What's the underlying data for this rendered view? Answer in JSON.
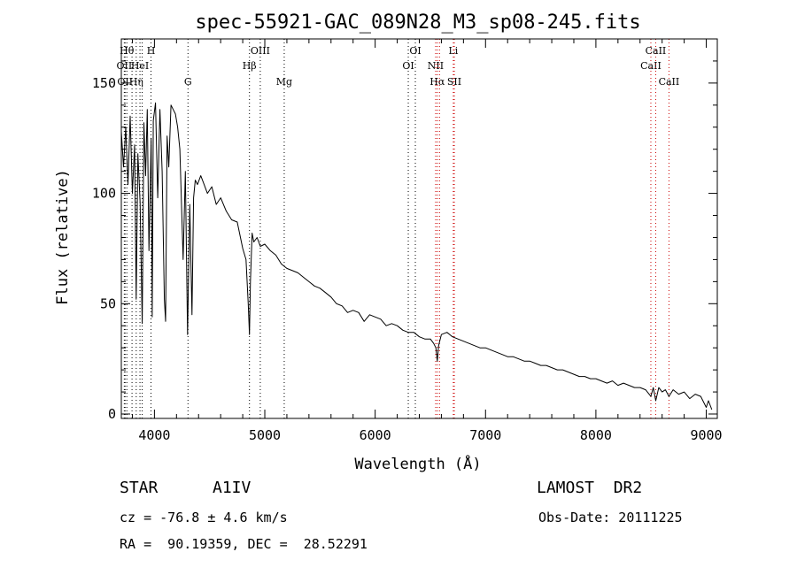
{
  "chart_data": {
    "type": "line",
    "title": "spec-55921-GAC_089N28_M3_sp08-245.fits",
    "xlabel": "Wavelength (Å)",
    "ylabel": "Flux (relative)",
    "xlim": [
      3700,
      9100
    ],
    "ylim": [
      -2,
      170
    ],
    "x_ticks": [
      4000,
      5000,
      6000,
      7000,
      8000,
      9000
    ],
    "y_ticks": [
      0,
      50,
      100,
      150
    ],
    "grid": false,
    "series": [
      {
        "x": [
          3700,
          3720,
          3740,
          3760,
          3780,
          3800,
          3820,
          3835,
          3850,
          3870,
          3889,
          3905,
          3920,
          3935,
          3950,
          3970,
          3980,
          3990,
          4010,
          4030,
          4050,
          4070,
          4090,
          4101,
          4115,
          4130,
          4150,
          4170,
          4190,
          4210,
          4230,
          4260,
          4280,
          4300,
          4320,
          4340,
          4355,
          4370,
          4390,
          4420,
          4450,
          4480,
          4520,
          4560,
          4600,
          4650,
          4700,
          4750,
          4800,
          4830,
          4850,
          4861,
          4870,
          4885,
          4900,
          4930,
          4960,
          5000,
          5050,
          5100,
          5150,
          5200,
          5250,
          5300,
          5350,
          5400,
          5450,
          5500,
          5550,
          5600,
          5650,
          5700,
          5750,
          5800,
          5850,
          5900,
          5950,
          6000,
          6050,
          6100,
          6150,
          6200,
          6250,
          6300,
          6350,
          6400,
          6450,
          6500,
          6530,
          6550,
          6563,
          6575,
          6600,
          6650,
          6700,
          6750,
          6800,
          6850,
          6900,
          6950,
          7000,
          7050,
          7100,
          7150,
          7200,
          7250,
          7300,
          7350,
          7400,
          7450,
          7500,
          7550,
          7600,
          7650,
          7700,
          7750,
          7800,
          7850,
          7900,
          7950,
          8000,
          8050,
          8100,
          8150,
          8200,
          8250,
          8300,
          8350,
          8400,
          8450,
          8498,
          8520,
          8542,
          8570,
          8600,
          8630,
          8662,
          8700,
          8750,
          8800,
          8850,
          8900,
          8950,
          8980,
          9000,
          9020,
          9050
        ],
        "y": [
          128,
          112,
          130,
          104,
          135,
          100,
          122,
          52,
          118,
          96,
          41,
          132,
          108,
          138,
          74,
          125,
          44,
          133,
          141,
          98,
          138,
          110,
          52,
          42,
          126,
          112,
          140,
          138,
          136,
          130,
          120,
          70,
          110,
          36,
          95,
          45,
          98,
          106,
          104,
          108,
          104,
          100,
          103,
          95,
          98,
          92,
          88,
          87,
          75,
          70,
          50,
          36,
          60,
          82,
          78,
          80,
          76,
          77,
          74,
          72,
          68,
          66,
          65,
          64,
          62,
          60,
          58,
          57,
          55,
          53,
          50,
          49,
          46,
          47,
          46,
          42,
          45,
          44,
          43,
          40,
          41,
          40,
          38,
          37,
          37,
          35,
          34,
          34,
          32,
          30,
          24,
          31,
          36,
          37,
          35,
          34,
          33,
          32,
          31,
          30,
          30,
          29,
          28,
          27,
          26,
          26,
          25,
          24,
          24,
          23,
          22,
          22,
          21,
          20,
          20,
          19,
          18,
          17,
          17,
          16,
          16,
          15,
          14,
          15,
          13,
          14,
          13,
          12,
          12,
          11,
          8,
          12,
          6,
          12,
          10,
          11,
          8,
          11,
          9,
          10,
          7,
          9,
          8,
          5,
          3,
          6,
          2
        ],
        "color": "#000000"
      }
    ],
    "line_markers": [
      {
        "wavelength": 3727,
        "label": "OII",
        "color": "#000000",
        "tier": 2
      },
      {
        "wavelength": 3734,
        "label": "OII",
        "color": "#000000",
        "tier": 3
      },
      {
        "wavelength": 3750,
        "label": "Hθ",
        "color": "#000000",
        "tier": 1
      },
      {
        "wavelength": 3797,
        "label": "",
        "color": "#000000",
        "tier": 0
      },
      {
        "wavelength": 3835,
        "label": "Hη",
        "color": "#000000",
        "tier": 3
      },
      {
        "wavelength": 3869,
        "label": "HeI",
        "color": "#000000",
        "tier": 2
      },
      {
        "wavelength": 3889,
        "label": "",
        "color": "#000000",
        "tier": 0
      },
      {
        "wavelength": 3969,
        "label": "H",
        "color": "#000000",
        "tier": 1
      },
      {
        "wavelength": 4304,
        "label": "G",
        "color": "#000000",
        "tier": 3
      },
      {
        "wavelength": 4861,
        "label": "Hβ",
        "color": "#000000",
        "tier": 2
      },
      {
        "wavelength": 4959,
        "label": "OIII",
        "color": "#000000",
        "tier": 1
      },
      {
        "wavelength": 5176,
        "label": "Mg",
        "color": "#000000",
        "tier": 3
      },
      {
        "wavelength": 6300,
        "label": "OI",
        "color": "#000000",
        "tier": 2
      },
      {
        "wavelength": 6364,
        "label": "OI",
        "color": "#000000",
        "tier": 1
      },
      {
        "wavelength": 6548,
        "label": "NII",
        "color": "#cc0000",
        "tier": 2
      },
      {
        "wavelength": 6563,
        "label": "Hα",
        "color": "#cc0000",
        "tier": 3
      },
      {
        "wavelength": 6583,
        "label": "",
        "color": "#cc0000",
        "tier": 0
      },
      {
        "wavelength": 6708,
        "label": "Li",
        "color": "#cc0000",
        "tier": 1
      },
      {
        "wavelength": 6717,
        "label": "SII",
        "color": "#cc0000",
        "tier": 3
      },
      {
        "wavelength": 8498,
        "label": "CaII",
        "color": "#cc0000",
        "tier": 2
      },
      {
        "wavelength": 8542,
        "label": "CaII",
        "color": "#cc0000",
        "tier": 1
      },
      {
        "wavelength": 8662,
        "label": "CaII",
        "color": "#cc0000",
        "tier": 3
      }
    ]
  },
  "info": {
    "object_class": "STAR",
    "subclass": "A1IV",
    "survey": "LAMOST  DR2",
    "cz": "cz = -76.8 ± 4.6 km/s",
    "obs_date": "Obs-Date: 20111225",
    "coords": "RA =  90.19359, DEC =  28.52291"
  }
}
